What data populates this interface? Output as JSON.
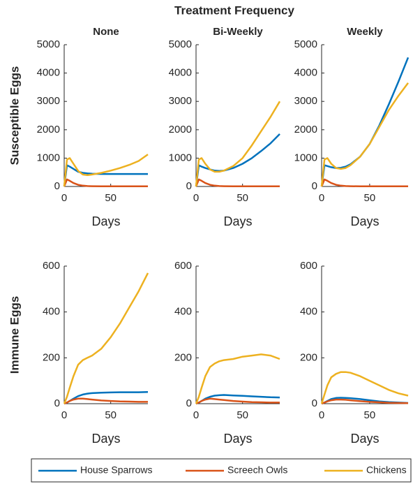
{
  "title": "Treatment Frequency",
  "chart_data": [
    {
      "type": "line",
      "title": "None",
      "ylabel": "Susceptible Eggs",
      "xlabel": "Days",
      "x": [
        0,
        3,
        6,
        10,
        15,
        20,
        25,
        30,
        40,
        50,
        60,
        70,
        80,
        90
      ],
      "series": [
        {
          "name": "House Sparrows",
          "color": "#0072bd",
          "values": [
            0,
            750,
            700,
            620,
            520,
            480,
            460,
            450,
            440,
            440,
            440,
            440,
            440,
            440
          ]
        },
        {
          "name": "Screech Owls",
          "color": "#d95319",
          "values": [
            0,
            250,
            200,
            120,
            60,
            30,
            15,
            10,
            5,
            5,
            5,
            5,
            5,
            5
          ]
        },
        {
          "name": "Chickens",
          "color": "#edb120",
          "values": [
            0,
            950,
            1000,
            800,
            550,
            420,
            400,
            420,
            480,
            560,
            650,
            760,
            900,
            1130
          ]
        }
      ],
      "xlim": [
        0,
        90
      ],
      "xticks": [
        0,
        50
      ],
      "ylim": [
        0,
        5000
      ],
      "yticks": [
        0,
        1000,
        2000,
        3000,
        4000,
        5000
      ]
    },
    {
      "type": "line",
      "title": "Bi-Weekly",
      "xlabel": "Days",
      "x": [
        0,
        3,
        6,
        10,
        15,
        20,
        25,
        30,
        40,
        50,
        60,
        70,
        80,
        90
      ],
      "series": [
        {
          "name": "House Sparrows",
          "color": "#0072bd",
          "values": [
            0,
            750,
            700,
            650,
            600,
            560,
            550,
            560,
            650,
            800,
            1000,
            1250,
            1520,
            1850
          ]
        },
        {
          "name": "Screech Owls",
          "color": "#d95319",
          "values": [
            0,
            250,
            200,
            120,
            60,
            30,
            15,
            10,
            5,
            5,
            5,
            5,
            5,
            5
          ]
        },
        {
          "name": "Chickens",
          "color": "#edb120",
          "values": [
            0,
            950,
            1000,
            800,
            600,
            520,
            520,
            560,
            720,
            1000,
            1450,
            1950,
            2450,
            3000
          ]
        }
      ],
      "xlim": [
        0,
        90
      ],
      "xticks": [
        0,
        50
      ],
      "ylim": [
        0,
        5000
      ],
      "yticks": [
        0,
        1000,
        2000,
        3000,
        4000,
        5000
      ]
    },
    {
      "type": "line",
      "title": "Weekly",
      "xlabel": "Days",
      "x": [
        0,
        3,
        6,
        10,
        15,
        20,
        25,
        30,
        40,
        50,
        60,
        70,
        80,
        90
      ],
      "series": [
        {
          "name": "House Sparrows",
          "color": "#0072bd",
          "values": [
            0,
            750,
            720,
            680,
            650,
            660,
            700,
            780,
            1050,
            1500,
            2150,
            2900,
            3700,
            4550
          ]
        },
        {
          "name": "Screech Owls",
          "color": "#d95319",
          "values": [
            0,
            250,
            200,
            120,
            60,
            30,
            15,
            10,
            5,
            5,
            5,
            5,
            5,
            5
          ]
        },
        {
          "name": "Chickens",
          "color": "#edb120",
          "values": [
            0,
            950,
            1000,
            800,
            650,
            620,
            650,
            750,
            1050,
            1500,
            2100,
            2700,
            3200,
            3650
          ]
        }
      ],
      "xlim": [
        0,
        90
      ],
      "xticks": [
        0,
        50
      ],
      "ylim": [
        0,
        5000
      ],
      "yticks": [
        0,
        1000,
        2000,
        3000,
        4000,
        5000
      ]
    },
    {
      "type": "line",
      "ylabel": "Immune Eggs",
      "xlabel": "Days",
      "x": [
        0,
        3,
        6,
        10,
        15,
        20,
        25,
        30,
        40,
        50,
        60,
        70,
        80,
        90
      ],
      "series": [
        {
          "name": "House Sparrows",
          "color": "#0072bd",
          "values": [
            0,
            5,
            12,
            22,
            33,
            40,
            44,
            46,
            48,
            49,
            50,
            50,
            50,
            51
          ]
        },
        {
          "name": "Screech Owls",
          "color": "#d95319",
          "values": [
            0,
            5,
            12,
            18,
            22,
            22,
            20,
            18,
            14,
            12,
            10,
            9,
            8,
            8
          ]
        },
        {
          "name": "Chickens",
          "color": "#edb120",
          "values": [
            0,
            30,
            70,
            120,
            170,
            190,
            200,
            210,
            240,
            290,
            350,
            420,
            490,
            570
          ]
        }
      ],
      "xlim": [
        0,
        90
      ],
      "xticks": [
        0,
        50
      ],
      "ylim": [
        0,
        600
      ],
      "yticks": [
        0,
        200,
        400,
        600
      ]
    },
    {
      "type": "line",
      "xlabel": "Days",
      "x": [
        0,
        3,
        6,
        10,
        15,
        20,
        25,
        30,
        40,
        50,
        60,
        70,
        80,
        90
      ],
      "series": [
        {
          "name": "House Sparrows",
          "color": "#0072bd",
          "values": [
            0,
            5,
            12,
            22,
            30,
            35,
            37,
            38,
            36,
            34,
            32,
            30,
            28,
            27
          ]
        },
        {
          "name": "Screech Owls",
          "color": "#d95319",
          "values": [
            0,
            5,
            12,
            18,
            22,
            20,
            18,
            16,
            12,
            9,
            7,
            6,
            5,
            5
          ]
        },
        {
          "name": "Chickens",
          "color": "#edb120",
          "values": [
            0,
            30,
            70,
            120,
            160,
            175,
            185,
            190,
            195,
            205,
            210,
            215,
            210,
            195
          ]
        }
      ],
      "xlim": [
        0,
        90
      ],
      "xticks": [
        0,
        50
      ],
      "ylim": [
        0,
        600
      ],
      "yticks": [
        0,
        200,
        400,
        600
      ]
    },
    {
      "type": "line",
      "xlabel": "Days",
      "x": [
        0,
        3,
        6,
        10,
        15,
        20,
        25,
        30,
        40,
        50,
        60,
        70,
        80,
        90
      ],
      "series": [
        {
          "name": "House Sparrows",
          "color": "#0072bd",
          "values": [
            0,
            5,
            12,
            20,
            25,
            26,
            25,
            24,
            20,
            15,
            10,
            7,
            5,
            3
          ]
        },
        {
          "name": "Screech Owls",
          "color": "#d95319",
          "values": [
            0,
            5,
            10,
            15,
            18,
            18,
            17,
            15,
            11,
            8,
            6,
            4,
            3,
            2
          ]
        },
        {
          "name": "Chickens",
          "color": "#edb120",
          "values": [
            0,
            40,
            80,
            115,
            130,
            138,
            138,
            135,
            120,
            100,
            80,
            60,
            45,
            35
          ]
        }
      ],
      "xlim": [
        0,
        90
      ],
      "xticks": [
        0,
        50
      ],
      "ylim": [
        0,
        600
      ],
      "yticks": [
        0,
        200,
        400,
        600
      ]
    }
  ]
}
